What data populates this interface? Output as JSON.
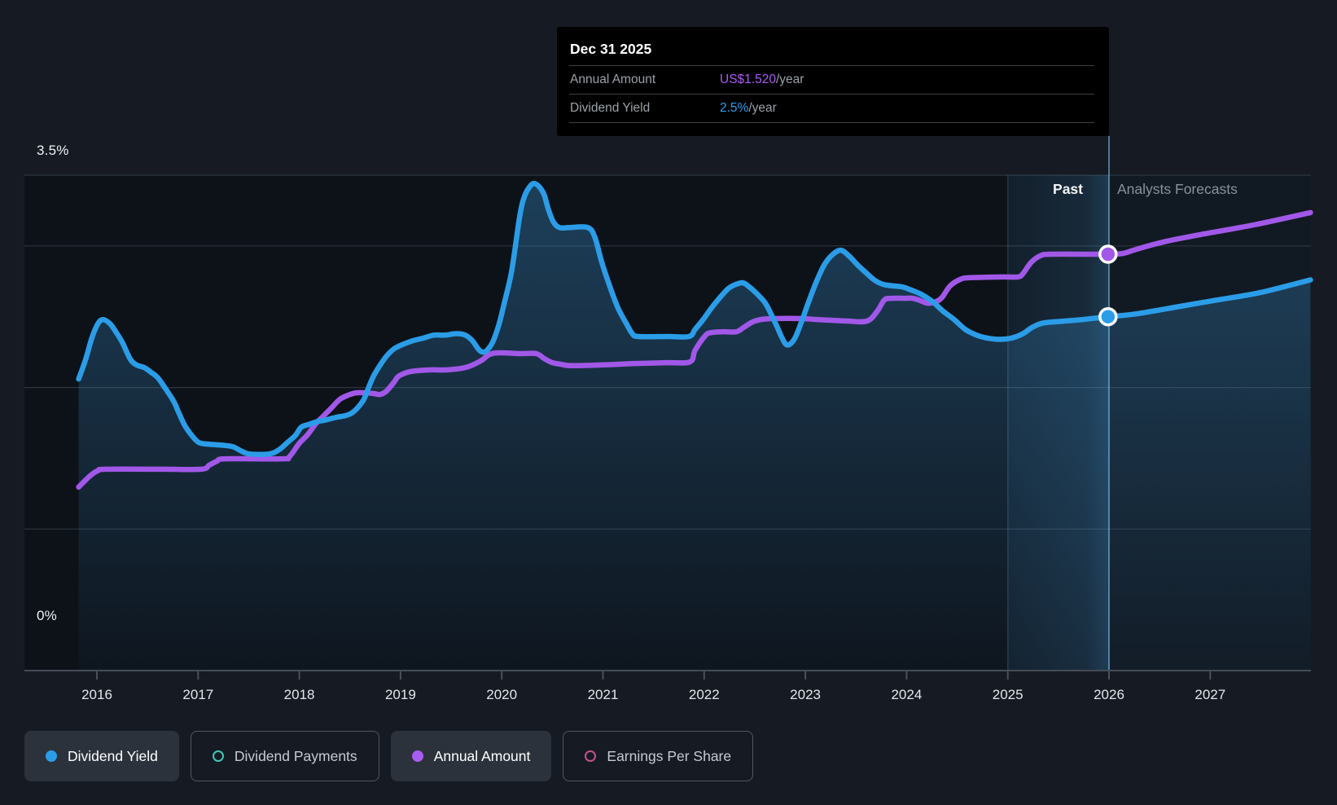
{
  "colors": {
    "page_bg": "#161B23",
    "plot_bg": "#0D1219",
    "gridline": "#2E3640",
    "axis_line": "#454C55",
    "dividend_yield_blue": "#2B9DE8",
    "annual_amount_purple": "#A158E8",
    "dividend_payments_teal": "#43C6B7",
    "earnings_per_share_pink": "#C9508F",
    "tooltip_value_purple": "#AC5CF5",
    "tooltip_value_blue": "#2D9FEE",
    "band_tint": "rgba(72,152,212,1)"
  },
  "tooltip": {
    "date": "Dec 31 2025",
    "rows": [
      {
        "label": "Annual Amount",
        "value": "US$1.520",
        "suffix": "/year"
      },
      {
        "label": "Dividend Yield",
        "value": "2.5%",
        "suffix": "/year"
      }
    ]
  },
  "labels": {
    "past": "Past",
    "forecasts": "Analysts Forecasts"
  },
  "axes": {
    "y_top": "3.5%",
    "y_zero": "0%"
  },
  "legend": {
    "items": [
      {
        "label": "Dividend Yield",
        "active": true,
        "style": "filled",
        "color": "#2B9DE8"
      },
      {
        "label": "Dividend Payments",
        "active": false,
        "style": "ring",
        "color": "#43C6B7"
      },
      {
        "label": "Annual Amount",
        "active": true,
        "style": "filled",
        "color": "#A85CF0"
      },
      {
        "label": "Earnings Per Share",
        "active": false,
        "style": "ring",
        "color": "#C9508F"
      }
    ]
  },
  "chart_data": {
    "type": "area",
    "title": "Dividend yield and annual dividend amount — history and analyst forecasts",
    "x_axis": {
      "ticks": [
        2016,
        2017,
        2018,
        2019,
        2020,
        2021,
        2022,
        2023,
        2024,
        2025,
        2026,
        2027
      ],
      "range": [
        2015.72,
        2028.02
      ]
    },
    "y_axis_percent": {
      "range": [
        0,
        3.5
      ],
      "gridlines_pct": [
        3.5,
        3.0,
        2.0,
        1.0
      ],
      "top_label": "3.5%",
      "zero_label": "0%"
    },
    "y_axis_usd": {
      "range": [
        0,
        2.38
      ]
    },
    "past_forecast_divider_year": 2026.0,
    "highlight_band_years": [
      2025.0,
      2026.0
    ],
    "legend_position": "bottom",
    "grid": true,
    "series": [
      {
        "name": "Dividend Yield",
        "unit": "%",
        "color": "#2B9DE8",
        "area_fill": true,
        "marker": {
          "year": 2025.99,
          "value": 2.5
        },
        "points": [
          [
            2015.82,
            2.06
          ],
          [
            2015.89,
            2.2
          ],
          [
            2015.95,
            2.35
          ],
          [
            2016.01,
            2.45
          ],
          [
            2016.06,
            2.48
          ],
          [
            2016.13,
            2.45
          ],
          [
            2016.19,
            2.39
          ],
          [
            2016.25,
            2.32
          ],
          [
            2016.33,
            2.2
          ],
          [
            2016.39,
            2.16
          ],
          [
            2016.47,
            2.14
          ],
          [
            2016.53,
            2.11
          ],
          [
            2016.6,
            2.07
          ],
          [
            2016.68,
            1.99
          ],
          [
            2016.76,
            1.9
          ],
          [
            2016.81,
            1.82
          ],
          [
            2016.87,
            1.73
          ],
          [
            2016.95,
            1.65
          ],
          [
            2017.01,
            1.61
          ],
          [
            2017.09,
            1.6
          ],
          [
            2017.27,
            1.59
          ],
          [
            2017.35,
            1.58
          ],
          [
            2017.43,
            1.55
          ],
          [
            2017.51,
            1.53
          ],
          [
            2017.7,
            1.53
          ],
          [
            2017.8,
            1.56
          ],
          [
            2017.88,
            1.61
          ],
          [
            2017.96,
            1.66
          ],
          [
            2018.02,
            1.72
          ],
          [
            2018.1,
            1.74
          ],
          [
            2018.18,
            1.76
          ],
          [
            2018.26,
            1.77
          ],
          [
            2018.37,
            1.79
          ],
          [
            2018.45,
            1.8
          ],
          [
            2018.52,
            1.82
          ],
          [
            2018.58,
            1.86
          ],
          [
            2018.64,
            1.92
          ],
          [
            2018.69,
            2.01
          ],
          [
            2018.74,
            2.09
          ],
          [
            2018.8,
            2.16
          ],
          [
            2018.86,
            2.22
          ],
          [
            2018.93,
            2.27
          ],
          [
            2019.01,
            2.3
          ],
          [
            2019.12,
            2.33
          ],
          [
            2019.23,
            2.35
          ],
          [
            2019.33,
            2.37
          ],
          [
            2019.44,
            2.37
          ],
          [
            2019.55,
            2.38
          ],
          [
            2019.64,
            2.37
          ],
          [
            2019.71,
            2.33
          ],
          [
            2019.77,
            2.27
          ],
          [
            2019.81,
            2.25
          ],
          [
            2019.85,
            2.26
          ],
          [
            2019.91,
            2.32
          ],
          [
            2019.97,
            2.44
          ],
          [
            2020.03,
            2.61
          ],
          [
            2020.1,
            2.83
          ],
          [
            2020.18,
            3.22
          ],
          [
            2020.23,
            3.36
          ],
          [
            2020.29,
            3.43
          ],
          [
            2020.33,
            3.44
          ],
          [
            2020.38,
            3.41
          ],
          [
            2020.42,
            3.36
          ],
          [
            2020.46,
            3.26
          ],
          [
            2020.51,
            3.17
          ],
          [
            2020.57,
            3.13
          ],
          [
            2020.67,
            3.13
          ],
          [
            2020.85,
            3.13
          ],
          [
            2020.92,
            3.06
          ],
          [
            2020.99,
            2.88
          ],
          [
            2021.07,
            2.71
          ],
          [
            2021.15,
            2.56
          ],
          [
            2021.24,
            2.44
          ],
          [
            2021.29,
            2.38
          ],
          [
            2021.35,
            2.36
          ],
          [
            2021.64,
            2.36
          ],
          [
            2021.85,
            2.36
          ],
          [
            2021.91,
            2.41
          ],
          [
            2021.99,
            2.48
          ],
          [
            2022.07,
            2.56
          ],
          [
            2022.15,
            2.63
          ],
          [
            2022.24,
            2.7
          ],
          [
            2022.32,
            2.73
          ],
          [
            2022.38,
            2.74
          ],
          [
            2022.43,
            2.72
          ],
          [
            2022.51,
            2.67
          ],
          [
            2022.6,
            2.6
          ],
          [
            2022.66,
            2.52
          ],
          [
            2022.72,
            2.43
          ],
          [
            2022.77,
            2.35
          ],
          [
            2022.82,
            2.3
          ],
          [
            2022.89,
            2.34
          ],
          [
            2022.96,
            2.46
          ],
          [
            2023.03,
            2.6
          ],
          [
            2023.11,
            2.75
          ],
          [
            2023.19,
            2.87
          ],
          [
            2023.27,
            2.94
          ],
          [
            2023.35,
            2.97
          ],
          [
            2023.43,
            2.93
          ],
          [
            2023.51,
            2.87
          ],
          [
            2023.6,
            2.81
          ],
          [
            2023.68,
            2.76
          ],
          [
            2023.76,
            2.73
          ],
          [
            2023.84,
            2.72
          ],
          [
            2023.96,
            2.71
          ],
          [
            2024.04,
            2.69
          ],
          [
            2024.14,
            2.66
          ],
          [
            2024.25,
            2.61
          ],
          [
            2024.36,
            2.54
          ],
          [
            2024.47,
            2.48
          ],
          [
            2024.58,
            2.41
          ],
          [
            2024.69,
            2.37
          ],
          [
            2024.79,
            2.35
          ],
          [
            2024.91,
            2.34
          ],
          [
            2025.04,
            2.35
          ],
          [
            2025.15,
            2.38
          ],
          [
            2025.23,
            2.42
          ],
          [
            2025.32,
            2.45
          ],
          [
            2025.4,
            2.46
          ],
          [
            2025.58,
            2.47
          ],
          [
            2025.74,
            2.48
          ],
          [
            2025.99,
            2.5
          ],
          [
            2026.27,
            2.52
          ],
          [
            2026.68,
            2.57
          ],
          [
            2027.08,
            2.62
          ],
          [
            2027.49,
            2.67
          ],
          [
            2027.99,
            2.76
          ]
        ]
      },
      {
        "name": "Annual Amount",
        "unit": "US$/year",
        "color": "#A158E8",
        "area_fill": false,
        "marker": {
          "year": 2025.99,
          "value": 1.52
        },
        "points": [
          [
            2015.82,
            0.67
          ],
          [
            2015.93,
            0.71
          ],
          [
            2016.01,
            0.73
          ],
          [
            2016.09,
            0.735
          ],
          [
            2016.65,
            0.735
          ],
          [
            2017.03,
            0.735
          ],
          [
            2017.11,
            0.75
          ],
          [
            2017.19,
            0.765
          ],
          [
            2017.27,
            0.773
          ],
          [
            2017.83,
            0.773
          ],
          [
            2017.9,
            0.78
          ],
          [
            2018.0,
            0.83
          ],
          [
            2018.08,
            0.86
          ],
          [
            2018.16,
            0.9
          ],
          [
            2018.24,
            0.93
          ],
          [
            2018.32,
            0.96
          ],
          [
            2018.4,
            0.99
          ],
          [
            2018.48,
            1.005
          ],
          [
            2018.56,
            1.014
          ],
          [
            2018.66,
            1.014
          ],
          [
            2018.74,
            1.011
          ],
          [
            2018.8,
            1.008
          ],
          [
            2018.86,
            1.02
          ],
          [
            2018.93,
            1.05
          ],
          [
            2018.98,
            1.074
          ],
          [
            2019.07,
            1.089
          ],
          [
            2019.17,
            1.095
          ],
          [
            2019.31,
            1.098
          ],
          [
            2019.47,
            1.098
          ],
          [
            2019.65,
            1.107
          ],
          [
            2019.79,
            1.13
          ],
          [
            2019.88,
            1.154
          ],
          [
            2019.98,
            1.16
          ],
          [
            2020.19,
            1.157
          ],
          [
            2020.34,
            1.157
          ],
          [
            2020.42,
            1.139
          ],
          [
            2020.5,
            1.124
          ],
          [
            2020.59,
            1.118
          ],
          [
            2020.69,
            1.113
          ],
          [
            2021.01,
            1.116
          ],
          [
            2021.32,
            1.121
          ],
          [
            2021.64,
            1.124
          ],
          [
            2021.86,
            1.127
          ],
          [
            2021.91,
            1.169
          ],
          [
            2022.01,
            1.222
          ],
          [
            2022.07,
            1.234
          ],
          [
            2022.2,
            1.237
          ],
          [
            2022.32,
            1.237
          ],
          [
            2022.4,
            1.255
          ],
          [
            2022.48,
            1.273
          ],
          [
            2022.57,
            1.282
          ],
          [
            2022.69,
            1.285
          ],
          [
            2022.97,
            1.285
          ],
          [
            2023.09,
            1.282
          ],
          [
            2023.25,
            1.279
          ],
          [
            2023.41,
            1.276
          ],
          [
            2023.61,
            1.276
          ],
          [
            2023.71,
            1.312
          ],
          [
            2023.78,
            1.353
          ],
          [
            2023.85,
            1.359
          ],
          [
            2023.97,
            1.359
          ],
          [
            2024.06,
            1.359
          ],
          [
            2024.14,
            1.35
          ],
          [
            2024.21,
            1.341
          ],
          [
            2024.29,
            1.347
          ],
          [
            2024.35,
            1.362
          ],
          [
            2024.43,
            1.404
          ],
          [
            2024.53,
            1.428
          ],
          [
            2024.62,
            1.434
          ],
          [
            2024.94,
            1.437
          ],
          [
            2025.1,
            1.437
          ],
          [
            2025.15,
            1.449
          ],
          [
            2025.23,
            1.49
          ],
          [
            2025.32,
            1.514
          ],
          [
            2025.42,
            1.52
          ],
          [
            2025.82,
            1.52
          ],
          [
            2025.99,
            1.52
          ],
          [
            2026.14,
            1.523
          ],
          [
            2026.27,
            1.538
          ],
          [
            2026.54,
            1.565
          ],
          [
            2026.94,
            1.594
          ],
          [
            2027.43,
            1.627
          ],
          [
            2027.99,
            1.672
          ]
        ]
      }
    ]
  }
}
